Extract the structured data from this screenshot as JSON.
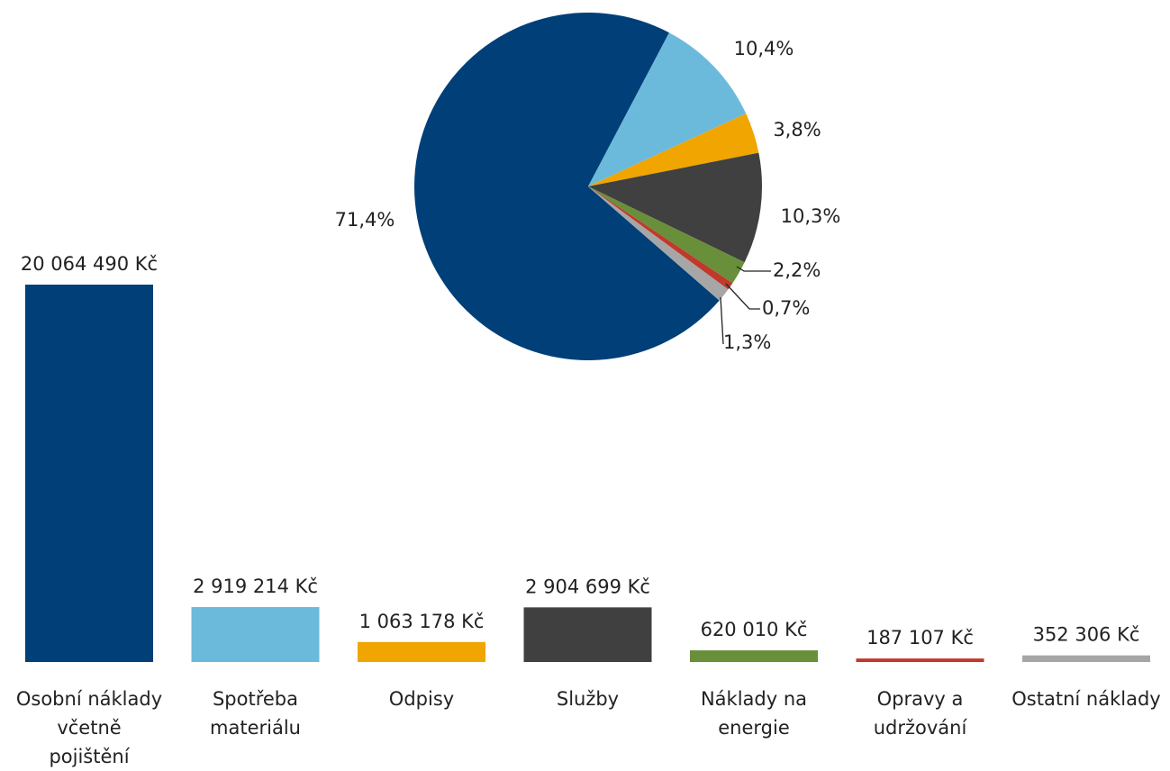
{
  "chart_data": [
    {
      "type": "pie",
      "categories": [
        "Osobní náklady\nvčetně\npojištění",
        "Spotřeba\nmateriálu",
        "Odpisy",
        "Služby",
        "Náklady na\nenergie",
        "Opravy a\nudržování",
        "Ostatní náklady"
      ],
      "values": [
        71.4,
        10.4,
        3.8,
        10.3,
        2.2,
        0.7,
        1.3
      ],
      "value_labels": [
        "71,4%",
        "10,4%",
        "3,8%",
        "10,3%",
        "2,2%",
        "0,7%",
        "1,3%"
      ],
      "colors": [
        "#003f78",
        "#6bbadc",
        "#f0a500",
        "#404040",
        "#6a8f3a",
        "#c0392b",
        "#a6a6a6"
      ]
    },
    {
      "type": "bar",
      "categories": [
        "Osobní náklady\nvčetně\npojištění",
        "Spotřeba\nmateriálu",
        "Odpisy",
        "Služby",
        "Náklady na\nenergie",
        "Opravy a\nudržování",
        "Ostatní náklady"
      ],
      "values": [
        20064490,
        2919214,
        1063178,
        2904699,
        620010,
        187107,
        352306
      ],
      "value_labels": [
        "20 064 490 Kč",
        "2 919 214 Kč",
        "1 063 178 Kč",
        "2 904 699 Kč",
        "620 010 Kč",
        "187 107 Kč",
        "352 306 Kč"
      ],
      "colors": [
        "#003f78",
        "#6bbadc",
        "#f0a500",
        "#404040",
        "#6a8f3a",
        "#c0392b",
        "#a6a6a6"
      ]
    }
  ]
}
